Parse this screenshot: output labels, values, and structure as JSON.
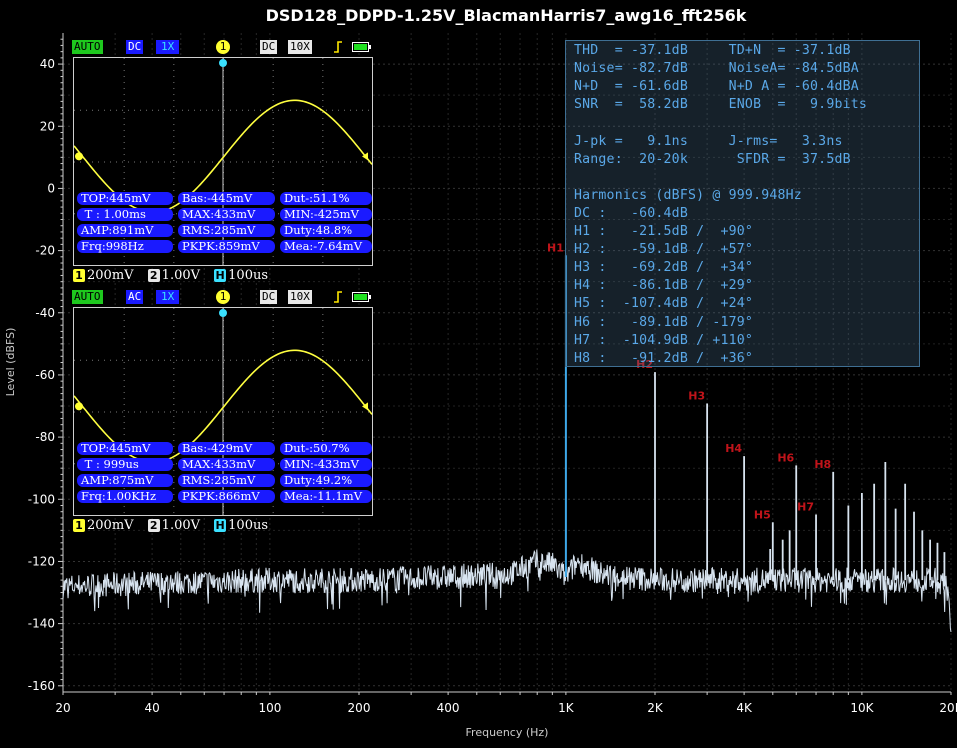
{
  "chart_data": {
    "type": "line",
    "title": "DSD128_DDPD-1.25V_BlacmanHarris7_awg16_fft256k",
    "xlabel": "Frequency (Hz)",
    "ylabel": "Level (dBFS)",
    "xscale": "log",
    "xlim": [
      20,
      20000
    ],
    "ylim": [
      -162,
      50
    ],
    "x_ticks": [
      {
        "v": 20,
        "label": "20"
      },
      {
        "v": 40,
        "label": "40"
      },
      {
        "v": 100,
        "label": "100"
      },
      {
        "v": 200,
        "label": "200"
      },
      {
        "v": 400,
        "label": "400"
      },
      {
        "v": 1000,
        "label": "1K"
      },
      {
        "v": 2000,
        "label": "2K"
      },
      {
        "v": 4000,
        "label": "4K"
      },
      {
        "v": 10000,
        "label": "10K"
      },
      {
        "v": 20000,
        "label": "20K"
      }
    ],
    "y_ticks": [
      40,
      20,
      0,
      -20,
      -40,
      -60,
      -80,
      -100,
      -120,
      -140,
      -160
    ],
    "grid": true,
    "series": [
      {
        "color": "#d8e4f0",
        "noise_floor": [
          [
            20,
            -128
          ],
          [
            40,
            -127
          ],
          [
            100,
            -126
          ],
          [
            200,
            -126
          ],
          [
            400,
            -125
          ],
          [
            650,
            -124
          ],
          [
            800,
            -120
          ],
          [
            900,
            -121
          ],
          [
            1000,
            -125
          ],
          [
            1100,
            -120
          ],
          [
            1300,
            -124
          ],
          [
            2000,
            -126
          ],
          [
            4000,
            -126
          ],
          [
            10000,
            -126
          ],
          [
            18000,
            -126
          ],
          [
            19500,
            -129
          ],
          [
            20000,
            -140
          ]
        ],
        "peaks": [
          {
            "f": 1000,
            "db": -21.5,
            "label": "H1"
          },
          {
            "f": 2000,
            "db": -59.1,
            "label": "H2"
          },
          {
            "f": 3000,
            "db": -69.2,
            "label": "H3"
          },
          {
            "f": 4000,
            "db": -86.1,
            "label": "H4"
          },
          {
            "f": 5000,
            "db": -107.4,
            "label": "H5"
          },
          {
            "f": 6000,
            "db": -89.1,
            "label": "H6"
          },
          {
            "f": 7000,
            "db": -104.9,
            "label": "H7"
          },
          {
            "f": 8000,
            "db": -91.2,
            "label": "H8"
          },
          {
            "f": 9000,
            "db": -102
          },
          {
            "f": 10000,
            "db": -98
          },
          {
            "f": 11000,
            "db": -95
          },
          {
            "f": 12000,
            "db": -88
          },
          {
            "f": 13000,
            "db": -103
          },
          {
            "f": 14000,
            "db": -95
          },
          {
            "f": 15000,
            "db": -104
          },
          {
            "f": 16000,
            "db": -110
          },
          {
            "f": 17000,
            "db": -113
          },
          {
            "f": 18000,
            "db": -114
          },
          {
            "f": 19000,
            "db": -117
          },
          {
            "f": 5400,
            "db": -113
          },
          {
            "f": 5700,
            "db": -110
          },
          {
            "f": 4900,
            "db": -116
          }
        ]
      }
    ]
  },
  "stats": [
    "THD  = -37.1dB     TD+N  = -37.1dB",
    "Noise= -82.7dB     NoiseA= -84.5dBA",
    "N+D  = -61.6dB     N+D A = -60.4dBA",
    "SNR  =  58.2dB     ENOB  =   9.9bits",
    "",
    "J-pk =   9.1ns     J-rms=   3.3ns",
    "Range:  20-20k      SFDR =  37.5dB",
    "",
    "Harmonics (dBFS) @ 999.948Hz",
    "DC :   -60.4dB",
    "H1 :   -21.5dB /  +90°",
    "H2 :   -59.1dB /  +57°",
    "H3 :   -69.2dB /  +34°",
    "H4 :   -86.1dB /  +29°",
    "H5 :  -107.4dB /  +24°",
    "H6 :   -89.1dB / -179°",
    "H7 :  -104.9dB / +110°",
    "H8 :   -91.2dB /  +36°"
  ],
  "scopes": [
    {
      "top": {
        "auto": "AUTO",
        "coupling": "DC",
        "probe": "1X",
        "ch": "1",
        "dc2": "DC",
        "x10": "10X"
      },
      "meas": [
        [
          "TOP:445mV",
          "Bas:-445mV",
          "Dut-:51.1%"
        ],
        [
          " T : 1.00ms",
          "MAX:433mV",
          "MIN:-425mV"
        ],
        [
          "AMP:891mV",
          "RMS:285mV",
          "Duty:48.8%"
        ],
        [
          "Frq:998Hz",
          "PKPK:859mV",
          "Mea:-7.64mV"
        ]
      ],
      "bottom": {
        "c1": "1",
        "v1": "200mV",
        "c2": "2",
        "v2": "1.00V",
        "h": "H",
        "hv": "100us"
      }
    },
    {
      "top": {
        "auto": "AUTO",
        "coupling": "AC",
        "probe": "1X",
        "ch": "1",
        "dc2": "DC",
        "x10": "10X"
      },
      "meas": [
        [
          "TOP:445mV",
          "Bas:-429mV",
          "Dut-:50.7%"
        ],
        [
          " T : 999us",
          "MAX:433mV",
          "MIN:-433mV"
        ],
        [
          "AMP:875mV",
          "RMS:285mV",
          "Duty:49.2%"
        ],
        [
          "Frq:1.00KHz",
          "PKPK:866mV",
          "Mea:-11.1mV"
        ]
      ],
      "bottom": {
        "c1": "1",
        "v1": "200mV",
        "c2": "2",
        "v2": "1.00V",
        "h": "H",
        "hv": "100us"
      }
    }
  ],
  "colors": {
    "background": "#000000",
    "trace": "#d8e4f0",
    "fundamental": "#3ea8e8",
    "harmonic_label": "#c0141a",
    "stats_text": "#5aa8e8",
    "scope_wave": "#ffff40",
    "scope_meas_bg": "#1a1aff"
  }
}
